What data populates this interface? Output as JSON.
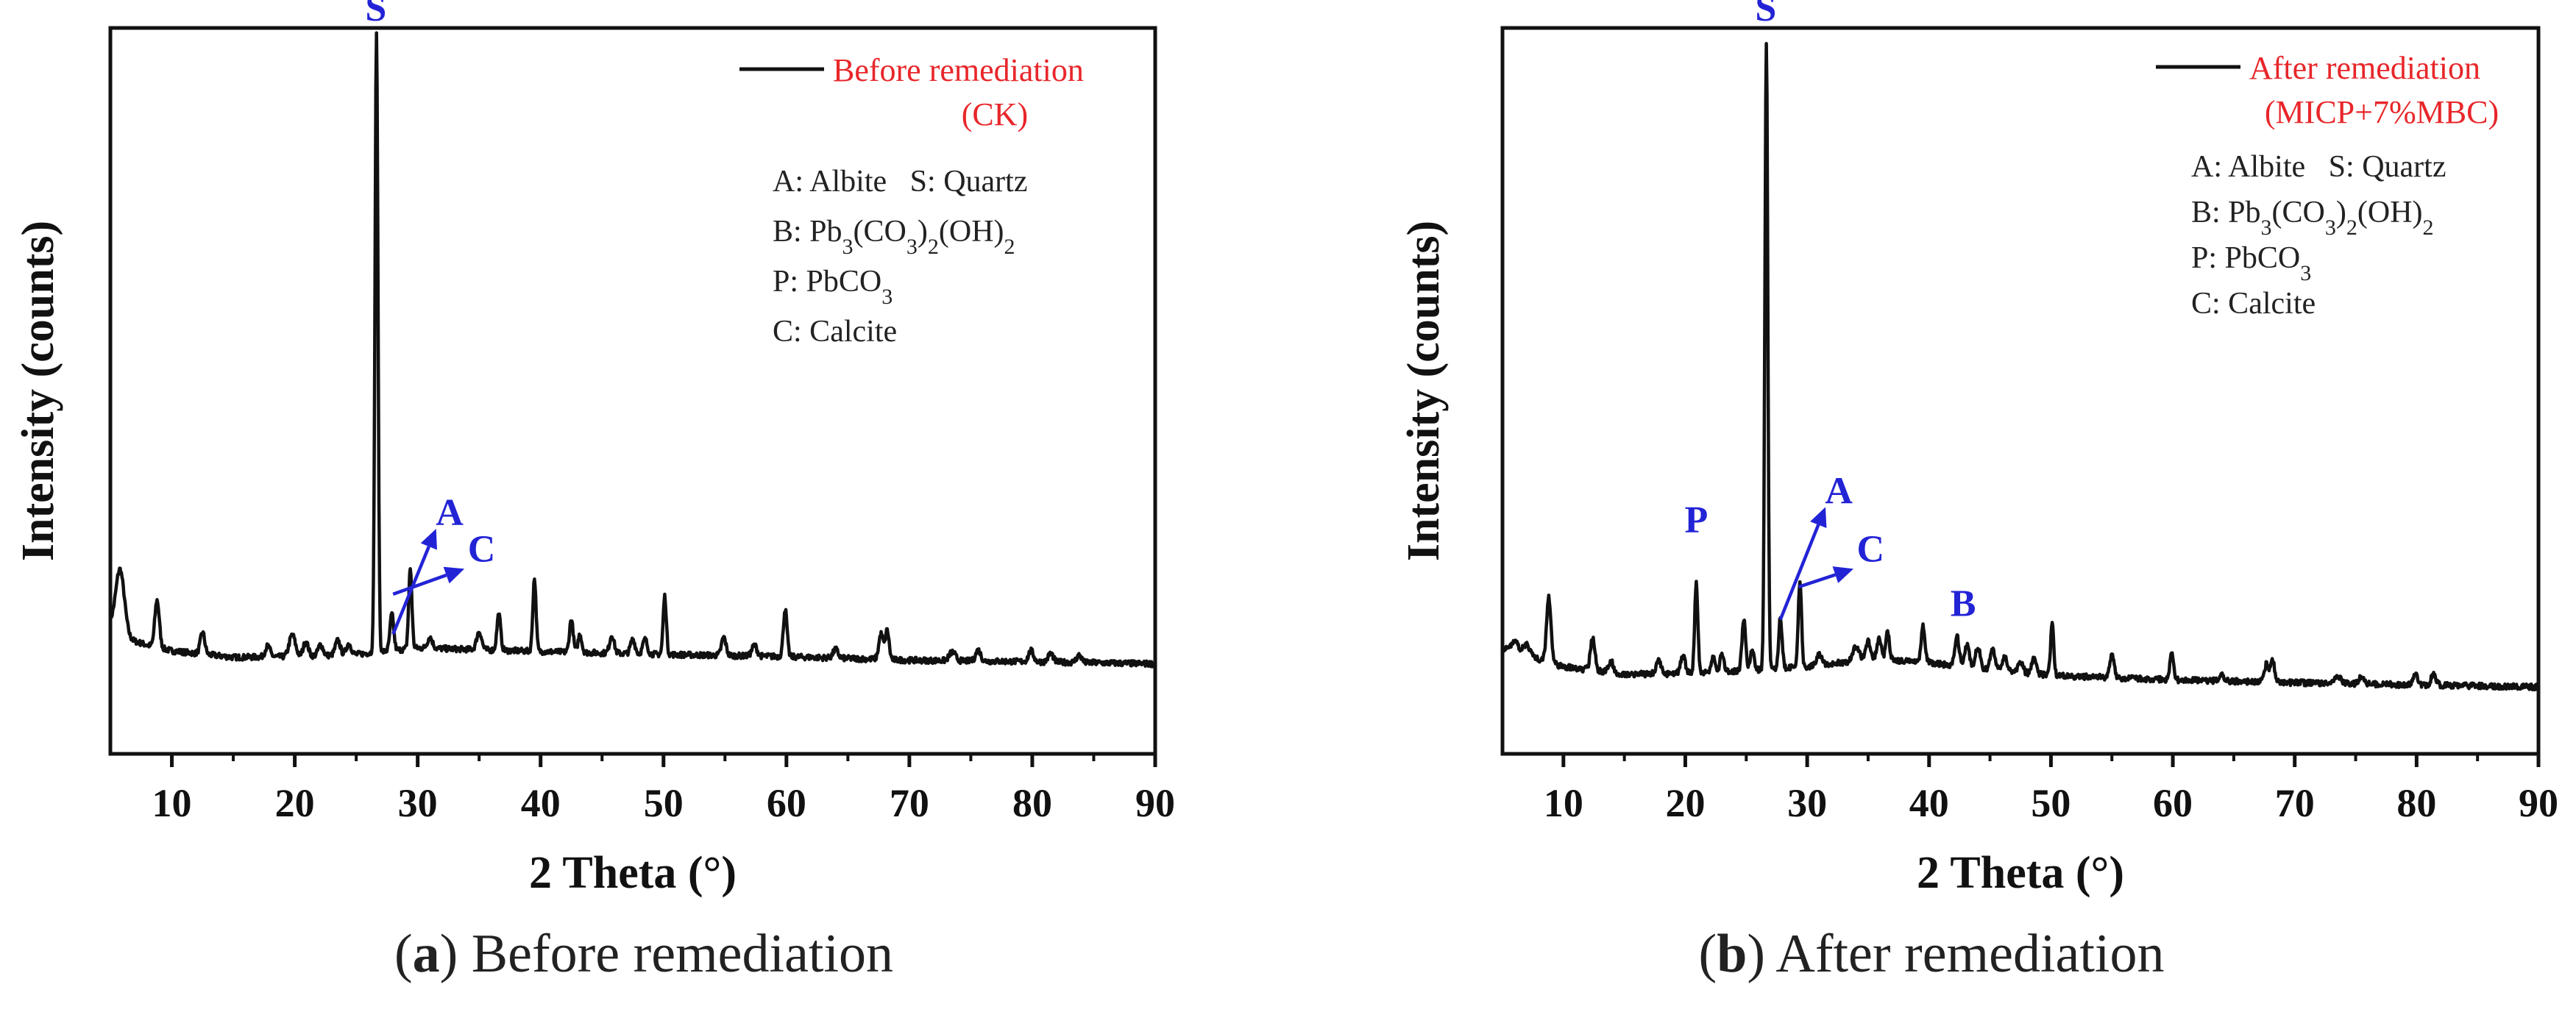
{
  "chart_data": [
    {
      "panel": "a",
      "type": "line",
      "xlabel": "2 Theta (°)",
      "ylabel": "Intensity (counts)",
      "xlim": [
        5,
        90
      ],
      "ylim": [
        0,
        100
      ],
      "xticks": [
        10,
        20,
        30,
        40,
        50,
        60,
        70,
        80,
        90
      ],
      "legend": {
        "label_line1": "Before remediation",
        "label_line2": "(CK)",
        "color": "#e8262a",
        "position": "top-right"
      },
      "phase_key": [
        "A: Albite   S: Quartz",
        "B: Pb3(CO3)2(OH)2",
        "P: PbCO3",
        "C: Calcite"
      ],
      "caption_letter": "a",
      "caption_text": " Before remediation",
      "baseline": {
        "x": [
          5,
          6,
          8,
          10,
          15,
          20,
          25,
          30,
          40,
          50,
          60,
          70,
          80,
          90
        ],
        "y": [
          18,
          16,
          15,
          14.2,
          13.3,
          13.4,
          13.7,
          14.6,
          14.1,
          13.7,
          13.4,
          12.9,
          12.7,
          12.4
        ]
      },
      "peaks": [
        {
          "x": 5.8,
          "h": 9,
          "w": 0.35
        },
        {
          "x": 8.8,
          "h": 6.5,
          "w": 0.18
        },
        {
          "x": 12.5,
          "h": 3,
          "w": 0.18
        },
        {
          "x": 17.8,
          "h": 1.5,
          "w": 0.2
        },
        {
          "x": 19.8,
          "h": 3,
          "w": 0.25
        },
        {
          "x": 20.9,
          "h": 2,
          "w": 0.2
        },
        {
          "x": 22.1,
          "h": 1.5,
          "w": 0.2
        },
        {
          "x": 23.5,
          "h": 2,
          "w": 0.2
        },
        {
          "x": 24.4,
          "h": 1.5,
          "w": 0.2
        },
        {
          "x": 26.65,
          "h": 85,
          "w": 0.12
        },
        {
          "x": 27.9,
          "h": 5,
          "w": 0.15
        },
        {
          "x": 29.4,
          "h": 11,
          "w": 0.13
        },
        {
          "x": 31.0,
          "h": 1.5,
          "w": 0.2
        },
        {
          "x": 35.0,
          "h": 2.5,
          "w": 0.2
        },
        {
          "x": 36.6,
          "h": 5,
          "w": 0.15
        },
        {
          "x": 39.5,
          "h": 10,
          "w": 0.13
        },
        {
          "x": 42.5,
          "h": 4.5,
          "w": 0.15
        },
        {
          "x": 43.2,
          "h": 2.5,
          "w": 0.15
        },
        {
          "x": 45.8,
          "h": 2.5,
          "w": 0.18
        },
        {
          "x": 47.5,
          "h": 2,
          "w": 0.18
        },
        {
          "x": 48.5,
          "h": 2,
          "w": 0.18
        },
        {
          "x": 50.1,
          "h": 8,
          "w": 0.13
        },
        {
          "x": 54.9,
          "h": 2.5,
          "w": 0.18
        },
        {
          "x": 57.4,
          "h": 1.5,
          "w": 0.2
        },
        {
          "x": 59.9,
          "h": 6.5,
          "w": 0.15
        },
        {
          "x": 64.0,
          "h": 1.2,
          "w": 0.2
        },
        {
          "x": 67.7,
          "h": 3.5,
          "w": 0.18
        },
        {
          "x": 68.2,
          "h": 4,
          "w": 0.15
        },
        {
          "x": 73.5,
          "h": 1.2,
          "w": 0.25
        },
        {
          "x": 75.6,
          "h": 1.5,
          "w": 0.2
        },
        {
          "x": 79.9,
          "h": 1.5,
          "w": 0.2
        },
        {
          "x": 81.5,
          "h": 1.2,
          "w": 0.2
        },
        {
          "x": 83.8,
          "h": 1,
          "w": 0.2
        }
      ],
      "annotations": [
        {
          "text": "S",
          "x": 26.6,
          "y": 101
        },
        {
          "text": "A",
          "x": 32.6,
          "y": 31.5
        },
        {
          "text": "C",
          "x": 35.2,
          "y": 26.5
        }
      ],
      "arrows": [
        {
          "from": [
            28.0,
            16.5
          ],
          "to": [
            31.5,
            31
          ]
        },
        {
          "from": [
            28.0,
            22.0
          ],
          "to": [
            33.8,
            25.5
          ]
        }
      ]
    },
    {
      "panel": "b",
      "type": "line",
      "xlabel": "2 Theta (°)",
      "ylabel": "Intensity (counts)",
      "xlim": [
        5,
        90
      ],
      "ylim": [
        0,
        100
      ],
      "xticks": [
        10,
        20,
        30,
        40,
        50,
        60,
        70,
        80,
        90
      ],
      "legend": {
        "label_line1": "After remediation",
        "label_line2": "(MICP+7%MBC)",
        "color": "#e8262a",
        "position": "top-right"
      },
      "phase_key": [
        "A: Albite   S: Quartz",
        "B: Pb3(CO3)2(OH)2",
        "P: PbCO3",
        "C: Calcite"
      ],
      "caption_letter": "b",
      "caption_text": " After remediation",
      "baseline": {
        "x": [
          5,
          8,
          10,
          15,
          20,
          25,
          30,
          35,
          40,
          45,
          50,
          60,
          70,
          80,
          90
        ],
        "y": [
          14.5,
          13,
          12,
          11,
          11,
          11.5,
          12,
          13,
          12.6,
          11.5,
          10.8,
          10.2,
          9.8,
          9.5,
          9.2
        ]
      },
      "peaks": [
        {
          "x": 6.0,
          "h": 1.5,
          "w": 0.3
        },
        {
          "x": 7.0,
          "h": 1.5,
          "w": 0.3
        },
        {
          "x": 8.8,
          "h": 9,
          "w": 0.18
        },
        {
          "x": 12.4,
          "h": 4.5,
          "w": 0.18
        },
        {
          "x": 13.9,
          "h": 1.5,
          "w": 0.2
        },
        {
          "x": 17.8,
          "h": 2,
          "w": 0.2
        },
        {
          "x": 19.8,
          "h": 2.5,
          "w": 0.2
        },
        {
          "x": 20.9,
          "h": 12.5,
          "w": 0.13
        },
        {
          "x": 22.3,
          "h": 2,
          "w": 0.18
        },
        {
          "x": 23.0,
          "h": 2.5,
          "w": 0.15
        },
        {
          "x": 24.8,
          "h": 7,
          "w": 0.15
        },
        {
          "x": 25.5,
          "h": 3,
          "w": 0.15
        },
        {
          "x": 26.65,
          "h": 86,
          "w": 0.12
        },
        {
          "x": 27.8,
          "h": 7,
          "w": 0.14
        },
        {
          "x": 29.4,
          "h": 12,
          "w": 0.13
        },
        {
          "x": 31.0,
          "h": 1.5,
          "w": 0.2
        },
        {
          "x": 34.0,
          "h": 2,
          "w": 0.25
        },
        {
          "x": 35.0,
          "h": 2.5,
          "w": 0.2
        },
        {
          "x": 35.9,
          "h": 3,
          "w": 0.18
        },
        {
          "x": 36.6,
          "h": 4,
          "w": 0.15
        },
        {
          "x": 39.5,
          "h": 5,
          "w": 0.15
        },
        {
          "x": 42.3,
          "h": 4,
          "w": 0.18
        },
        {
          "x": 43.1,
          "h": 3,
          "w": 0.2
        },
        {
          "x": 44.0,
          "h": 3,
          "w": 0.2
        },
        {
          "x": 45.2,
          "h": 3,
          "w": 0.2
        },
        {
          "x": 46.2,
          "h": 2,
          "w": 0.2
        },
        {
          "x": 47.5,
          "h": 1.5,
          "w": 0.2
        },
        {
          "x": 48.6,
          "h": 2,
          "w": 0.2
        },
        {
          "x": 50.1,
          "h": 7,
          "w": 0.13
        },
        {
          "x": 55.0,
          "h": 3,
          "w": 0.18
        },
        {
          "x": 59.9,
          "h": 3.5,
          "w": 0.15
        },
        {
          "x": 64.0,
          "h": 1,
          "w": 0.2
        },
        {
          "x": 67.7,
          "h": 2.5,
          "w": 0.18
        },
        {
          "x": 68.2,
          "h": 3,
          "w": 0.15
        },
        {
          "x": 73.5,
          "h": 1,
          "w": 0.25
        },
        {
          "x": 75.5,
          "h": 1,
          "w": 0.2
        },
        {
          "x": 79.9,
          "h": 1.5,
          "w": 0.2
        },
        {
          "x": 81.4,
          "h": 1.5,
          "w": 0.2
        }
      ],
      "annotations": [
        {
          "text": "S",
          "x": 26.6,
          "y": 101
        },
        {
          "text": "P",
          "x": 20.9,
          "y": 30.5
        },
        {
          "text": "A",
          "x": 32.6,
          "y": 34.5
        },
        {
          "text": "C",
          "x": 35.2,
          "y": 26.5
        },
        {
          "text": "B",
          "x": 42.8,
          "y": 19
        }
      ],
      "arrows": [
        {
          "from": [
            27.8,
            18.5
          ],
          "to": [
            31.5,
            34
          ]
        },
        {
          "from": [
            29.3,
            23.0
          ],
          "to": [
            33.8,
            25.5
          ]
        }
      ]
    }
  ]
}
